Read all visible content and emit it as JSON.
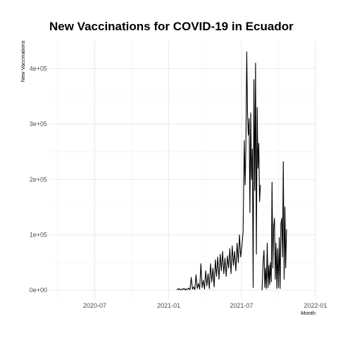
{
  "chart_data": {
    "type": "line",
    "title": "New Vaccinations for COVID-19 in Ecuador",
    "xlabel": "Month",
    "ylabel": "New Vaccinations",
    "x_ticks": [
      "2020-07",
      "2021-01",
      "2021-07",
      "2022-01"
    ],
    "y_ticks": [
      {
        "value": 0,
        "label": "0e+00"
      },
      {
        "value": 100000,
        "label": "1e+05"
      },
      {
        "value": 200000,
        "label": "2e+05"
      },
      {
        "value": 300000,
        "label": "3e+05"
      },
      {
        "value": 400000,
        "label": "4e+05"
      }
    ],
    "xlim": [
      "2020-03-10",
      "2022-01-01"
    ],
    "ylim": [
      -15000,
      450000
    ],
    "grid": true,
    "series": [
      {
        "points": [
          [
            "2021-01-21",
            2500
          ],
          [
            "2021-01-24",
            1000
          ],
          [
            "2021-01-27",
            3000
          ],
          [
            "2021-01-30",
            500
          ],
          [
            "2021-02-02",
            2000
          ],
          [
            "2021-02-05",
            1200
          ],
          [
            "2021-02-08",
            3500
          ],
          [
            "2021-02-11",
            500
          ],
          [
            "2021-02-14",
            2500
          ],
          [
            "2021-02-17",
            1500
          ],
          [
            "2021-02-20",
            4000
          ],
          [
            "2021-02-23",
            1000
          ],
          [
            "2021-02-26",
            23000
          ],
          [
            "2021-03-01",
            2000
          ],
          [
            "2021-03-04",
            6000
          ],
          [
            "2021-03-07",
            1000
          ],
          [
            "2021-03-10",
            28000
          ],
          [
            "2021-03-13",
            3000
          ],
          [
            "2021-03-16",
            12000
          ],
          [
            "2021-03-19",
            2000
          ],
          [
            "2021-03-22",
            48000
          ],
          [
            "2021-03-25",
            5000
          ],
          [
            "2021-03-28",
            18000
          ],
          [
            "2021-03-31",
            2000
          ],
          [
            "2021-04-03",
            35000
          ],
          [
            "2021-04-06",
            8000
          ],
          [
            "2021-04-09",
            30000
          ],
          [
            "2021-04-12",
            3000
          ],
          [
            "2021-04-15",
            48000
          ],
          [
            "2021-04-18",
            15000
          ],
          [
            "2021-04-21",
            40000
          ],
          [
            "2021-04-24",
            6000
          ],
          [
            "2021-04-27",
            55000
          ],
          [
            "2021-04-30",
            25000
          ],
          [
            "2021-05-03",
            60000
          ],
          [
            "2021-05-06",
            20000
          ],
          [
            "2021-05-09",
            65000
          ],
          [
            "2021-05-12",
            35000
          ],
          [
            "2021-05-15",
            70000
          ],
          [
            "2021-05-18",
            30000
          ],
          [
            "2021-05-21",
            58000
          ],
          [
            "2021-05-24",
            25000
          ],
          [
            "2021-05-27",
            62000
          ],
          [
            "2021-05-30",
            40000
          ],
          [
            "2021-06-02",
            75000
          ],
          [
            "2021-06-05",
            30000
          ],
          [
            "2021-06-08",
            80000
          ],
          [
            "2021-06-11",
            45000
          ],
          [
            "2021-06-14",
            70000
          ],
          [
            "2021-06-17",
            35000
          ],
          [
            "2021-06-20",
            85000
          ],
          [
            "2021-06-23",
            50000
          ],
          [
            "2021-06-26",
            100000
          ],
          [
            "2021-06-29",
            60000
          ],
          [
            "2021-07-02",
            80000
          ],
          [
            "2021-07-05",
            105000
          ],
          [
            "2021-07-08",
            270000
          ],
          [
            "2021-07-10",
            190000
          ],
          [
            "2021-07-12",
            260000
          ],
          [
            "2021-07-14",
            430000
          ],
          [
            "2021-07-16",
            320000
          ],
          [
            "2021-07-18",
            280000
          ],
          [
            "2021-07-20",
            310000
          ],
          [
            "2021-07-22",
            140000
          ],
          [
            "2021-07-24",
            320000
          ],
          [
            "2021-07-26",
            200000
          ],
          [
            "2021-07-28",
            255000
          ],
          [
            "2021-07-30",
            5000
          ],
          [
            "2021-08-01",
            380000
          ],
          [
            "2021-08-03",
            180000
          ],
          [
            "2021-08-05",
            410000
          ],
          [
            "2021-08-07",
            65000
          ],
          [
            "2021-08-09",
            330000
          ],
          [
            "2021-08-11",
            220000
          ],
          [
            "2021-08-13",
            265000
          ],
          [
            "2021-08-15",
            160000
          ],
          [
            "2021-08-17",
            190000
          ],
          [
            "2021-08-21",
            0
          ],
          [
            "2021-08-24",
            55000
          ],
          [
            "2021-08-26",
            72000
          ],
          [
            "2021-08-28",
            5000
          ],
          [
            "2021-08-30",
            40000
          ],
          [
            "2021-09-01",
            3000
          ],
          [
            "2021-09-03",
            85000
          ],
          [
            "2021-09-05",
            5000
          ],
          [
            "2021-09-07",
            45000
          ],
          [
            "2021-09-09",
            10000
          ],
          [
            "2021-09-11",
            50000
          ],
          [
            "2021-09-13",
            15000
          ],
          [
            "2021-09-15",
            195000
          ],
          [
            "2021-09-17",
            40000
          ],
          [
            "2021-09-19",
            115000
          ],
          [
            "2021-09-21",
            130000
          ],
          [
            "2021-09-23",
            20000
          ],
          [
            "2021-09-25",
            85000
          ],
          [
            "2021-09-27",
            3000
          ],
          [
            "2021-09-29",
            75000
          ],
          [
            "2021-10-01",
            5000
          ],
          [
            "2021-10-03",
            95000
          ],
          [
            "2021-10-05",
            3000
          ],
          [
            "2021-10-07",
            120000
          ],
          [
            "2021-10-09",
            130000
          ],
          [
            "2021-10-11",
            60000
          ],
          [
            "2021-10-13",
            232000
          ],
          [
            "2021-10-15",
            20000
          ],
          [
            "2021-10-17",
            150000
          ],
          [
            "2021-10-19",
            40000
          ],
          [
            "2021-10-21",
            110000
          ]
        ]
      }
    ]
  }
}
